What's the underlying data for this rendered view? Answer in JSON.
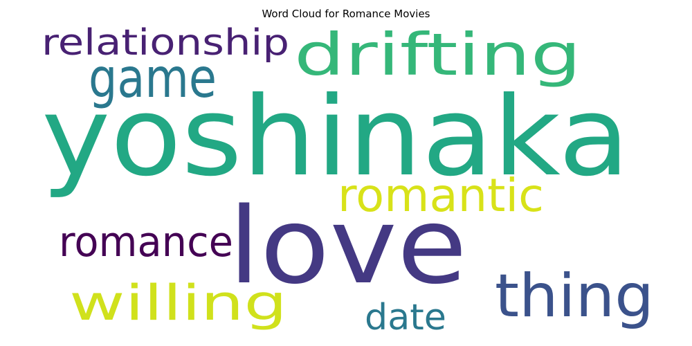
{
  "chart_data": {
    "type": "wordcloud",
    "title": "Word Cloud for Romance Movies",
    "words": [
      {
        "text": "yoshinaka",
        "color": "#22a884"
      },
      {
        "text": "love",
        "color": "#443983"
      },
      {
        "text": "drifting",
        "color": "#35b779"
      },
      {
        "text": "game",
        "color": "#2a788e"
      },
      {
        "text": "relationship",
        "color": "#482173"
      },
      {
        "text": "romantic",
        "color": "#d8e219"
      },
      {
        "text": "thing",
        "color": "#3b528b"
      },
      {
        "text": "willing",
        "color": "#d0e11c"
      },
      {
        "text": "romance",
        "color": "#440154"
      },
      {
        "text": "date",
        "color": "#2a788e"
      }
    ]
  }
}
